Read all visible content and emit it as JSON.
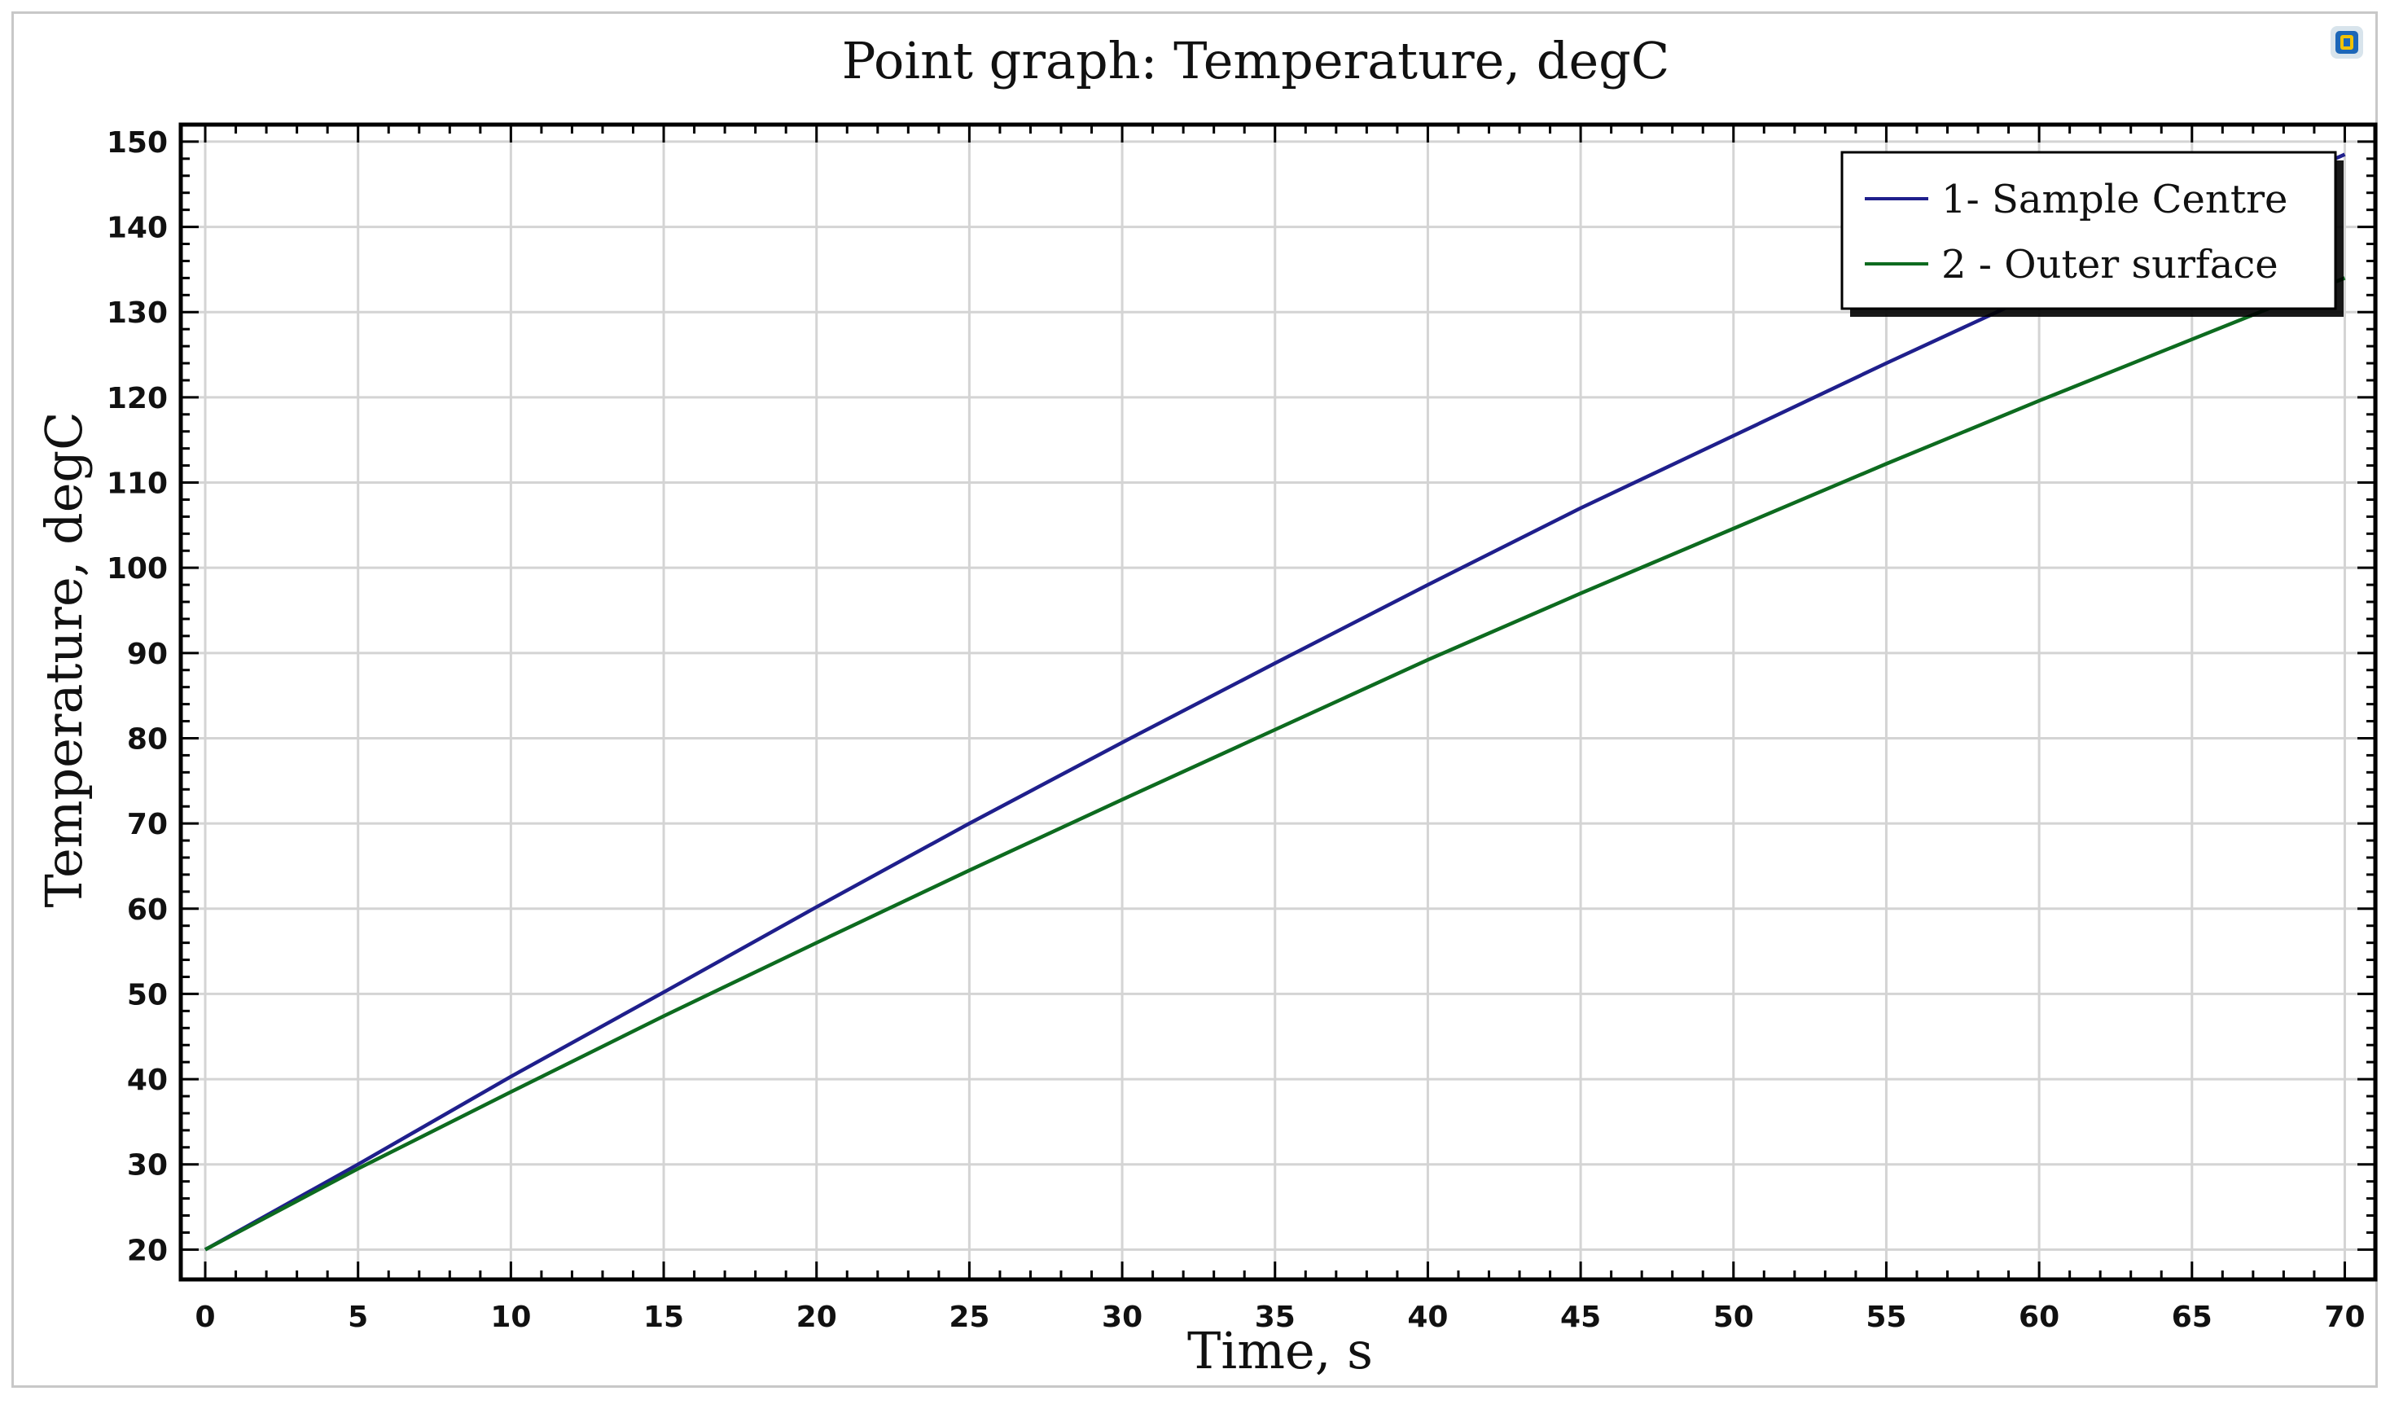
{
  "chart_data": {
    "type": "line",
    "title": "Point graph: Temperature, degC",
    "xlabel": "Time, s",
    "ylabel": "Temperature, degC",
    "xlim": [
      -0.8,
      71
    ],
    "ylim": [
      16.5,
      152
    ],
    "xticks": [
      0,
      5,
      10,
      15,
      20,
      25,
      30,
      35,
      40,
      45,
      50,
      55,
      60,
      65,
      70
    ],
    "yticks": [
      20,
      30,
      40,
      50,
      60,
      70,
      80,
      90,
      100,
      110,
      120,
      130,
      140,
      150
    ],
    "grid": true,
    "legend_position": "top-right",
    "series": [
      {
        "name": "1- Sample Centre",
        "color": "#1f1f8c",
        "x": [
          0,
          5,
          10,
          15,
          20,
          25,
          30,
          35,
          40,
          45,
          50,
          55,
          60,
          65,
          70
        ],
        "y": [
          20,
          30,
          40.3,
          50.2,
          60.2,
          70,
          79.5,
          88.8,
          98,
          107,
          115.5,
          124,
          132.3,
          140.5,
          148.5
        ]
      },
      {
        "name": "2 - Outer surface",
        "color": "#0d6b1f",
        "x": [
          0,
          5,
          10,
          15,
          20,
          25,
          30,
          35,
          40,
          45,
          50,
          55,
          60,
          65,
          70
        ],
        "y": [
          20,
          29.5,
          38.5,
          47.4,
          56,
          64.5,
          72.8,
          81,
          89.2,
          97,
          104.6,
          112.2,
          119.6,
          126.8,
          134
        ]
      }
    ]
  },
  "toolbar": {
    "corner_icon": "comsol-logo-icon"
  }
}
